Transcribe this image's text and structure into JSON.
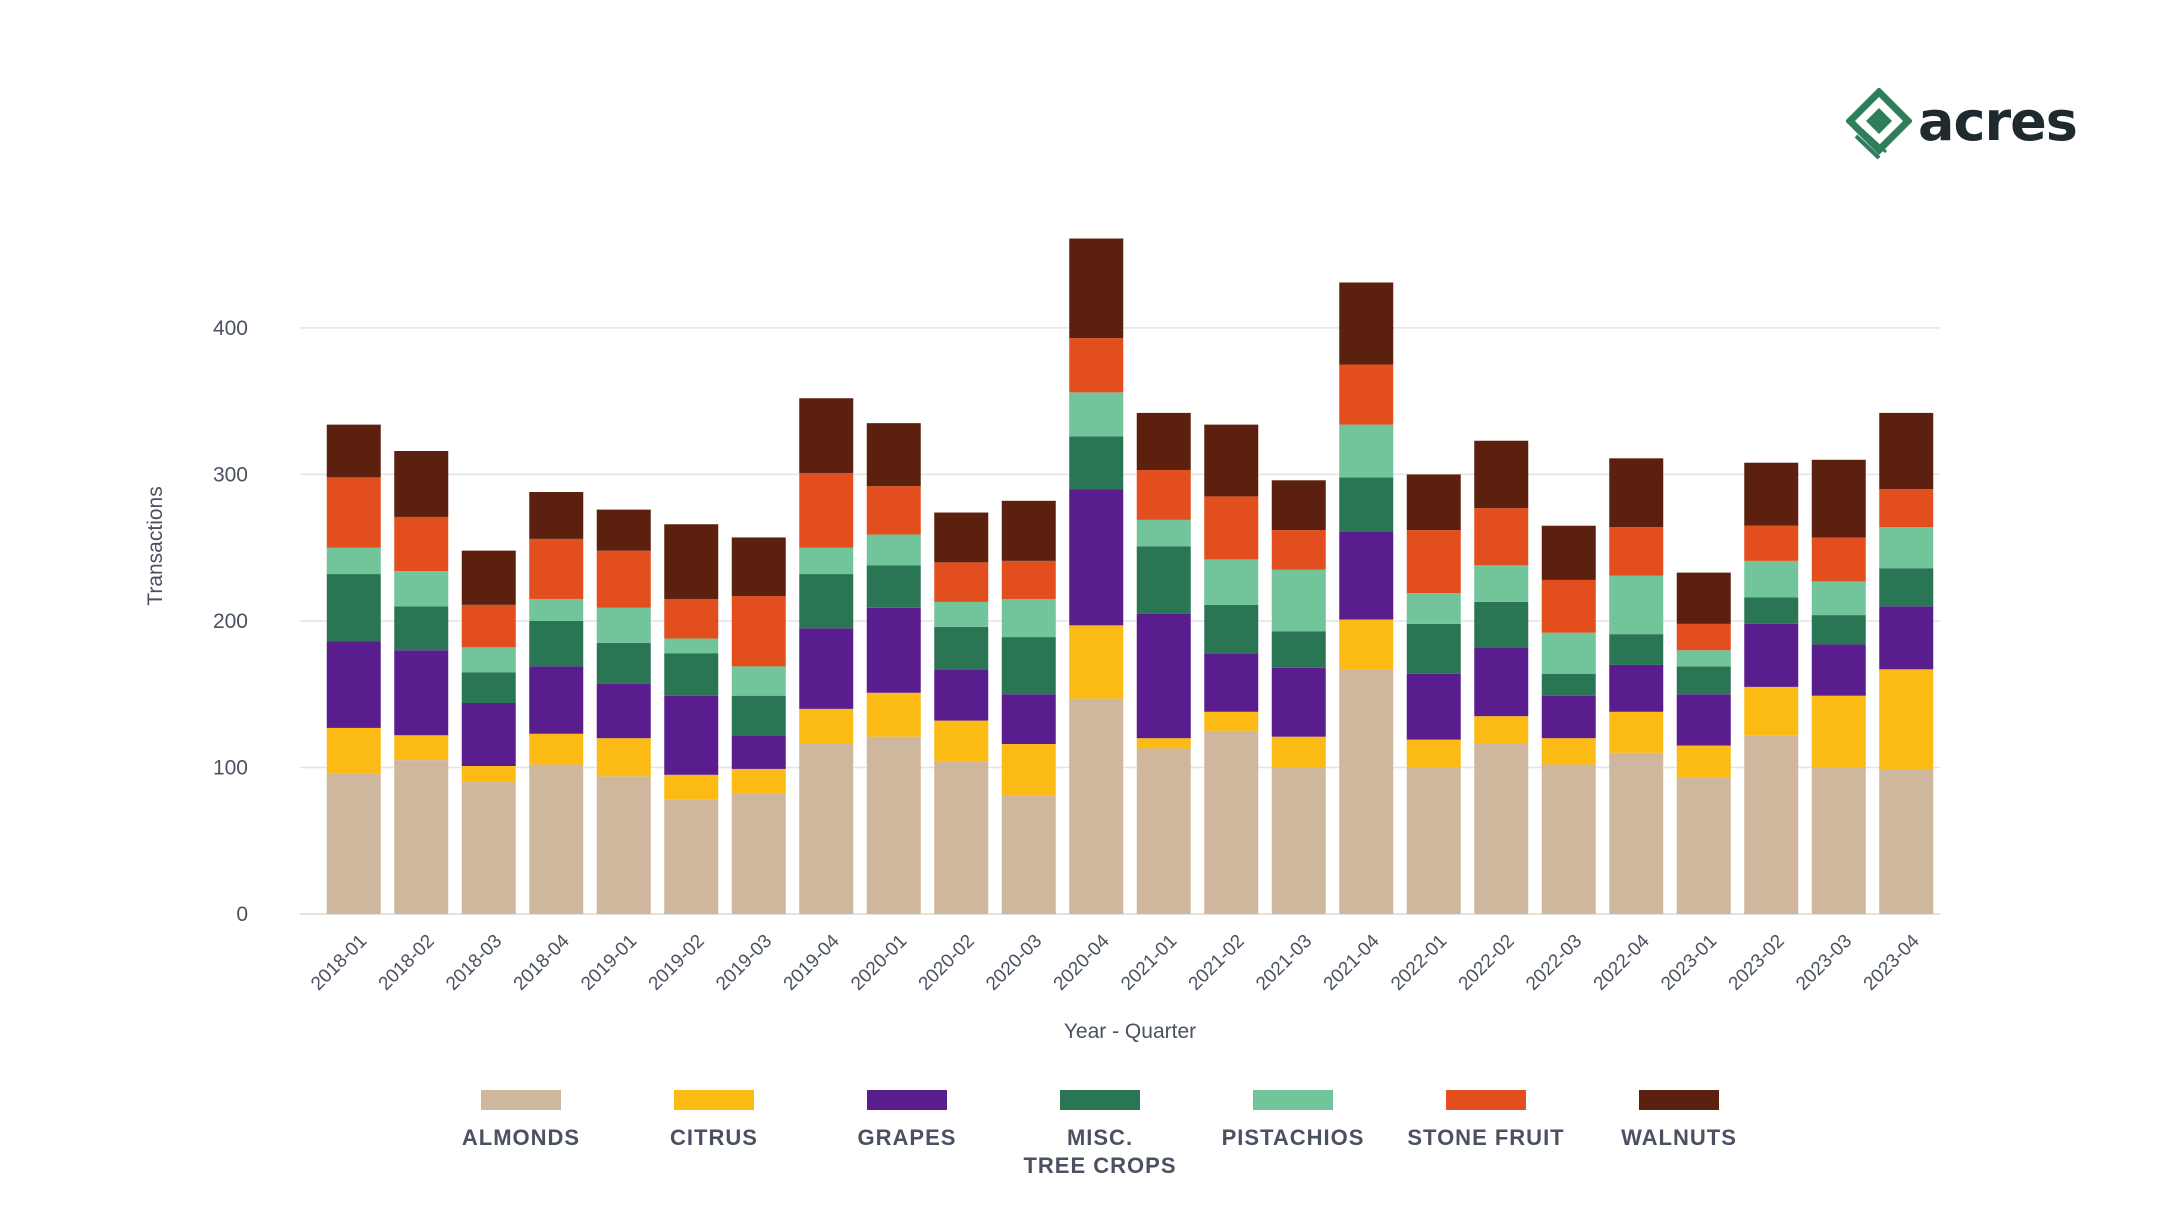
{
  "brand": {
    "name": "acres",
    "color": "#2e7d5b"
  },
  "chart_data": {
    "type": "bar",
    "stacked": true,
    "title": "",
    "xlabel": "Year - Quarter",
    "ylabel": "Transactions",
    "ylim": [
      0,
      460
    ],
    "yticks": [
      0,
      100,
      200,
      300,
      400
    ],
    "grid": true,
    "legend_position": "bottom",
    "categories": [
      "2018-01",
      "2018-02",
      "2018-03",
      "2018-04",
      "2019-01",
      "2019-02",
      "2019-03",
      "2019-04",
      "2020-01",
      "2020-02",
      "2020-03",
      "2020-04",
      "2021-01",
      "2021-02",
      "2021-03",
      "2021-04",
      "2022-01",
      "2022-02",
      "2022-03",
      "2022-04",
      "2023-01",
      "2023-02",
      "2023-03",
      "2023-04"
    ],
    "series": [
      {
        "name": "ALMONDS",
        "color": "#cfb79e",
        "values": [
          96,
          105,
          90,
          102,
          94,
          78,
          82,
          116,
          121,
          104,
          81,
          147,
          113,
          125,
          100,
          167,
          100,
          116,
          102,
          110,
          93,
          122,
          100,
          99
        ]
      },
      {
        "name": "CITRUS",
        "color": "#fbbb14",
        "values": [
          31,
          17,
          11,
          21,
          26,
          17,
          17,
          24,
          30,
          28,
          35,
          50,
          7,
          13,
          21,
          34,
          19,
          19,
          18,
          28,
          22,
          33,
          49,
          68
        ]
      },
      {
        "name": "GRAPES",
        "color": "#5a1d8e",
        "values": [
          59,
          58,
          43,
          46,
          37,
          54,
          23,
          55,
          58,
          35,
          34,
          93,
          85,
          40,
          47,
          60,
          45,
          47,
          29,
          32,
          35,
          43,
          35,
          43
        ]
      },
      {
        "name": "MISC.\nTREE CROPS",
        "color": "#2a7654",
        "values": [
          46,
          30,
          21,
          31,
          28,
          29,
          27,
          37,
          29,
          29,
          39,
          36,
          46,
          33,
          25,
          37,
          34,
          31,
          15,
          21,
          19,
          18,
          20,
          26
        ]
      },
      {
        "name": "PISTACHIOS",
        "color": "#72c49b",
        "values": [
          18,
          24,
          17,
          15,
          24,
          10,
          20,
          18,
          21,
          17,
          26,
          30,
          18,
          31,
          42,
          36,
          21,
          25,
          28,
          40,
          11,
          25,
          23,
          28
        ]
      },
      {
        "name": "STONE FRUIT",
        "color": "#e24e1e",
        "values": [
          48,
          37,
          29,
          41,
          39,
          27,
          48,
          51,
          33,
          27,
          26,
          37,
          34,
          43,
          27,
          41,
          43,
          39,
          36,
          33,
          18,
          24,
          30,
          26
        ]
      },
      {
        "name": "WALNUTS",
        "color": "#5c200e",
        "values": [
          36,
          45,
          37,
          32,
          28,
          51,
          40,
          51,
          43,
          34,
          41,
          68,
          39,
          49,
          34,
          56,
          38,
          46,
          37,
          47,
          35,
          43,
          53,
          52
        ]
      }
    ]
  }
}
